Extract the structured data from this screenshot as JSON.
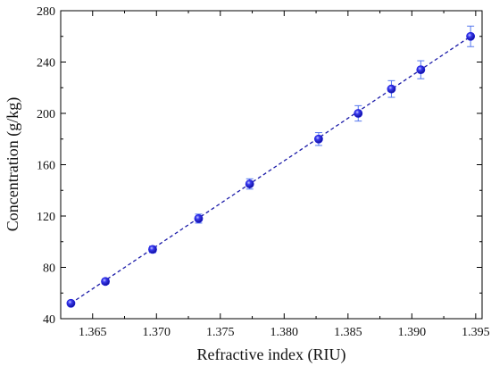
{
  "chart_data": {
    "type": "scatter",
    "xlabel": "Refractive index (RIU)",
    "ylabel": "Concentration (g/kg)",
    "xlim": [
      1.3625,
      1.3955
    ],
    "ylim": [
      40,
      280
    ],
    "x_ticks": [
      1.365,
      1.37,
      1.375,
      1.38,
      1.385,
      1.39,
      1.395
    ],
    "x_tick_labels": [
      "1.365",
      "1.370",
      "1.375",
      "1.380",
      "1.385",
      "1.390",
      "1.395"
    ],
    "y_ticks": [
      40,
      80,
      120,
      160,
      200,
      240,
      280
    ],
    "y_tick_labels": [
      "40",
      "80",
      "120",
      "160",
      "200",
      "240",
      "280"
    ],
    "grid": false,
    "series": [
      {
        "x": [
          1.3633,
          1.366,
          1.3697,
          1.3733,
          1.3773,
          1.3827,
          1.3858,
          1.3884,
          1.3907,
          1.3946
        ],
        "y": [
          52,
          69,
          94,
          118,
          145,
          180,
          200,
          219,
          234,
          260
        ],
        "error": [
          1.5,
          2,
          2.5,
          3.5,
          4,
          5,
          6,
          6.5,
          7,
          8
        ],
        "marker_color": "#1a1adf",
        "errorbar_color": "#5577ee"
      }
    ],
    "fit_line": {
      "x": [
        1.3633,
        1.3946
      ],
      "y": [
        52,
        260
      ],
      "style": "dashed",
      "color": "#1a1aa8"
    }
  }
}
